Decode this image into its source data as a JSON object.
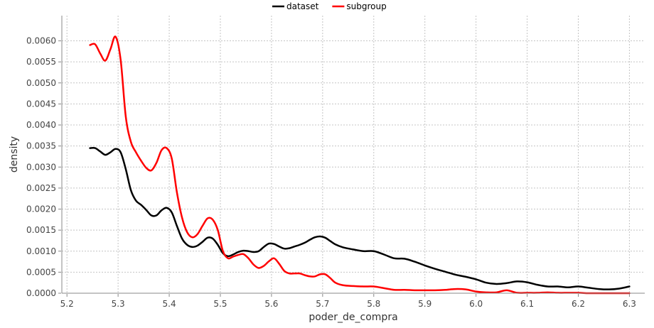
{
  "chart_data": {
    "type": "line",
    "xlabel": "poder_de_compra",
    "ylabel": "density",
    "xlim": [
      5.19,
      6.33
    ],
    "ylim": [
      0,
      0.0066
    ],
    "x_ticks": [
      "5.2",
      "5.3",
      "5.4",
      "5.5",
      "5.6",
      "5.7",
      "5.8",
      "5.9",
      "6.0",
      "6.1",
      "6.2",
      "6.3"
    ],
    "y_ticks": [
      "0.0000",
      "0.0005",
      "0.0010",
      "0.0015",
      "0.0020",
      "0.0025",
      "0.0030",
      "0.0035",
      "0.0040",
      "0.0045",
      "0.0050",
      "0.0055",
      "0.0060"
    ],
    "grid": true,
    "legend_position": "top-center",
    "series": [
      {
        "name": "dataset",
        "color": "#000000",
        "x": [
          5.245,
          5.255,
          5.265,
          5.275,
          5.285,
          5.295,
          5.305,
          5.315,
          5.325,
          5.335,
          5.345,
          5.355,
          5.365,
          5.375,
          5.385,
          5.395,
          5.405,
          5.415,
          5.425,
          5.435,
          5.445,
          5.455,
          5.465,
          5.475,
          5.485,
          5.495,
          5.505,
          5.515,
          5.525,
          5.535,
          5.545,
          5.555,
          5.565,
          5.575,
          5.585,
          5.595,
          5.605,
          5.615,
          5.625,
          5.635,
          5.645,
          5.655,
          5.665,
          5.675,
          5.685,
          5.695,
          5.705,
          5.715,
          5.725,
          5.74,
          5.76,
          5.78,
          5.8,
          5.82,
          5.84,
          5.86,
          5.88,
          5.9,
          5.92,
          5.94,
          5.96,
          5.98,
          6.0,
          6.02,
          6.04,
          6.06,
          6.08,
          6.1,
          6.12,
          6.14,
          6.16,
          6.18,
          6.2,
          6.22,
          6.24,
          6.26,
          6.28,
          6.3
        ],
        "y": [
          0.00345,
          0.00345,
          0.00337,
          0.00329,
          0.00335,
          0.00343,
          0.00335,
          0.00295,
          0.00245,
          0.0022,
          0.0021,
          0.00198,
          0.00185,
          0.00185,
          0.00197,
          0.00203,
          0.00192,
          0.0016,
          0.0013,
          0.00115,
          0.0011,
          0.00113,
          0.00122,
          0.00132,
          0.0013,
          0.00115,
          0.00095,
          0.00088,
          0.00092,
          0.00098,
          0.00101,
          0.001,
          0.00098,
          0.001,
          0.0011,
          0.00118,
          0.00117,
          0.00111,
          0.00106,
          0.00107,
          0.00111,
          0.00115,
          0.0012,
          0.00127,
          0.00133,
          0.00135,
          0.00132,
          0.00124,
          0.00116,
          0.00109,
          0.00104,
          0.001,
          0.001,
          0.00092,
          0.00083,
          0.00082,
          0.00075,
          0.00066,
          0.00058,
          0.00051,
          0.00044,
          0.00039,
          0.00033,
          0.00025,
          0.00022,
          0.00024,
          0.00028,
          0.00026,
          0.0002,
          0.00016,
          0.00016,
          0.00014,
          0.00016,
          0.00013,
          0.0001,
          9e-05,
          0.00011,
          0.00016
        ]
      },
      {
        "name": "subgroup",
        "color": "#ff0000",
        "x": [
          5.245,
          5.255,
          5.265,
          5.275,
          5.285,
          5.295,
          5.305,
          5.315,
          5.325,
          5.335,
          5.345,
          5.355,
          5.365,
          5.375,
          5.385,
          5.395,
          5.405,
          5.415,
          5.425,
          5.435,
          5.445,
          5.455,
          5.465,
          5.475,
          5.485,
          5.495,
          5.505,
          5.515,
          5.525,
          5.535,
          5.545,
          5.555,
          5.565,
          5.575,
          5.585,
          5.595,
          5.605,
          5.615,
          5.625,
          5.635,
          5.645,
          5.655,
          5.665,
          5.675,
          5.685,
          5.695,
          5.705,
          5.715,
          5.725,
          5.74,
          5.76,
          5.78,
          5.8,
          5.82,
          5.84,
          5.86,
          5.88,
          5.9,
          5.92,
          5.94,
          5.96,
          5.98,
          6.0,
          6.02,
          6.04,
          6.06,
          6.08,
          6.1,
          6.12,
          6.14,
          6.16,
          6.18,
          6.2,
          6.22,
          6.24,
          6.26,
          6.28,
          6.3
        ],
        "y": [
          0.0059,
          0.00592,
          0.0057,
          0.00553,
          0.0058,
          0.0061,
          0.00555,
          0.0042,
          0.0036,
          0.00335,
          0.00315,
          0.00298,
          0.00292,
          0.0031,
          0.0034,
          0.00345,
          0.0032,
          0.0024,
          0.0018,
          0.00145,
          0.00133,
          0.0014,
          0.0016,
          0.00178,
          0.00175,
          0.0015,
          0.001,
          0.00083,
          0.00087,
          0.00091,
          0.00093,
          0.00083,
          0.00068,
          0.0006,
          0.00065,
          0.00076,
          0.00083,
          0.0007,
          0.00053,
          0.00047,
          0.00047,
          0.00047,
          0.00043,
          0.0004,
          0.0004,
          0.00045,
          0.00045,
          0.00036,
          0.00025,
          0.00019,
          0.00017,
          0.00016,
          0.00016,
          0.00012,
          8e-05,
          8e-05,
          7e-05,
          7e-05,
          7e-05,
          8e-05,
          0.0001,
          9e-05,
          4e-05,
          2e-05,
          2e-05,
          7e-05,
          1e-05,
          1e-05,
          1e-05,
          2e-05,
          1e-05,
          1e-05,
          1e-05,
          0.0,
          0.0,
          0.0,
          0.0,
          0.0
        ]
      }
    ]
  }
}
